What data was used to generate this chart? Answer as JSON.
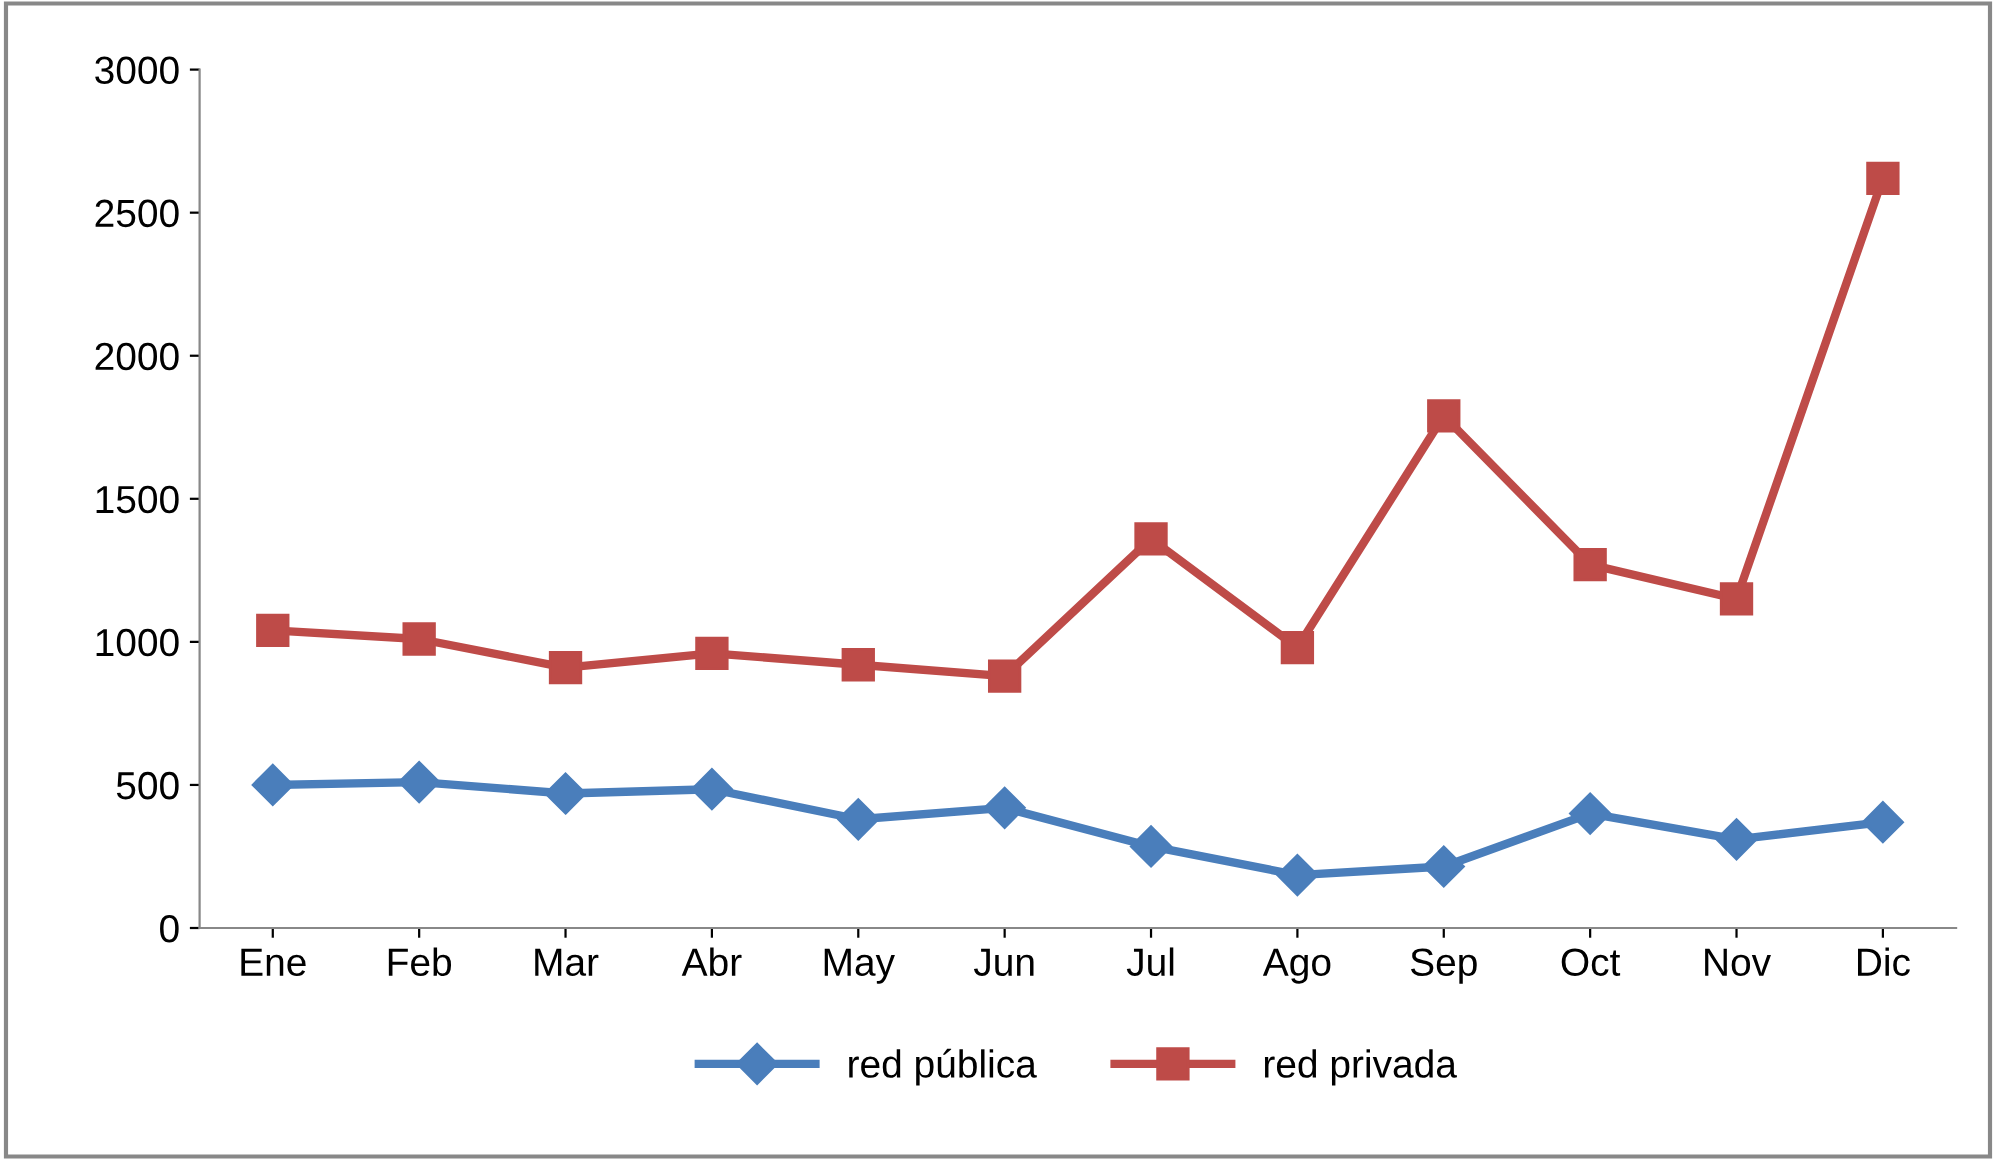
{
  "chart_data": {
    "type": "line",
    "categories": [
      "Ene",
      "Feb",
      "Mar",
      "Abr",
      "May",
      "Jun",
      "Jul",
      "Ago",
      "Sep",
      "Oct",
      "Nov",
      "Dic"
    ],
    "series": [
      {
        "name": "red pública",
        "color": "#4a7ebb",
        "marker": "diamond",
        "values": [
          500,
          510,
          470,
          485,
          380,
          420,
          285,
          185,
          215,
          400,
          310,
          370
        ]
      },
      {
        "name": "red privada",
        "color": "#be4b48",
        "marker": "square",
        "values": [
          1040,
          1010,
          910,
          960,
          920,
          880,
          1360,
          980,
          1790,
          1270,
          1150,
          2620
        ]
      }
    ],
    "ylim": [
      0,
      3000
    ],
    "yticks": [
      0,
      500,
      1000,
      1500,
      2000,
      2500,
      3000
    ],
    "grid": false,
    "legend": "bottom",
    "line_style": "solid"
  }
}
